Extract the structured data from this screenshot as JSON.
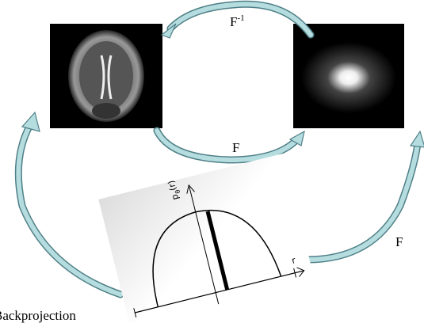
{
  "labels": {
    "inverse_transform": {
      "base": "F",
      "sup": "-1"
    },
    "forward_transform": "F",
    "forward_transform_right": "F",
    "backprojection": "Backprojection",
    "projection_axis": {
      "base": "p",
      "sub": "θ",
      "rest": "(r)"
    },
    "r_axis": "r"
  }
}
